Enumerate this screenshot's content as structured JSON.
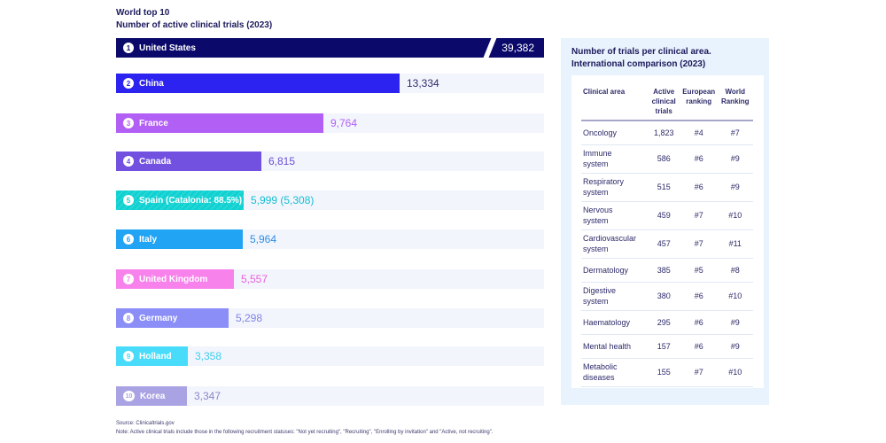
{
  "title": {
    "line1": "World top 10",
    "line2": "Number of active clinical trials (2023)"
  },
  "chart_data": {
    "type": "bar",
    "orientation": "horizontal",
    "title": "World top 10 — Number of active clinical trials (2023)",
    "xlabel": "",
    "ylabel": "",
    "axis_break_on_first_bar": true,
    "xlim": [
      0,
      15000
    ],
    "categories": [
      "United States",
      "China",
      "France",
      "Canada",
      "Spain (Catalonia: 88.5%)",
      "Italy",
      "United Kingdom",
      "Germany",
      "Holland",
      "Korea"
    ],
    "values": [
      39382,
      13334,
      9764,
      6815,
      5999,
      5964,
      5557,
      5298,
      3358,
      3347
    ],
    "bars": [
      {
        "rank": "1",
        "label": "United States",
        "value": 39382,
        "value_label": "39,382",
        "color": "#0b0a6b",
        "text_color": "#ffffff",
        "broken": true
      },
      {
        "rank": "2",
        "label": "China",
        "value": 13334,
        "value_label": "13,334",
        "color": "#2d23f0",
        "text_color": "#2d2b6a"
      },
      {
        "rank": "3",
        "label": "France",
        "value": 9764,
        "value_label": "9,764",
        "color": "#b25ff5",
        "text_color": "#b25ff5"
      },
      {
        "rank": "4",
        "label": "Canada",
        "value": 6815,
        "value_label": "6,815",
        "color": "#7351e0",
        "text_color": "#6a4fd6"
      },
      {
        "rank": "5",
        "label": "Spain (Catalonia: 88.5%)",
        "value": 5999,
        "value_label": "5,999 (5,308)",
        "secondary_value": 5308,
        "color": "#0fd1d1",
        "text_color": "#12bfcf",
        "striped": true
      },
      {
        "rank": "6",
        "label": "Italy",
        "value": 5964,
        "value_label": "5,964",
        "color": "#22a4f4",
        "text_color": "#2a8ee8"
      },
      {
        "rank": "7",
        "label": "United Kingdom",
        "value": 5557,
        "value_label": "5,557",
        "color": "#f882ec",
        "text_color": "#e860dc"
      },
      {
        "rank": "8",
        "label": "Germany",
        "value": 5298,
        "value_label": "5,298",
        "color": "#8a8ef6",
        "text_color": "#7f84e8"
      },
      {
        "rank": "9",
        "label": "Holland",
        "value": 3358,
        "value_label": "3,358",
        "color": "#48dcfa",
        "text_color": "#3ccdf0"
      },
      {
        "rank": "10",
        "label": "Korea",
        "value": 3347,
        "value_label": "3,347",
        "color": "#a9a3e3",
        "text_color": "#8a85c8"
      }
    ]
  },
  "panel": {
    "title_line1": "Number of trials per clinical area.",
    "title_line2": "International comparison (2023)",
    "headers": [
      [
        "Clinical area"
      ],
      [
        "Active",
        "clinical",
        "trials"
      ],
      [
        "European",
        "ranking"
      ],
      [
        "World",
        "Ranking"
      ]
    ],
    "rows": [
      {
        "area": [
          "Oncology"
        ],
        "trials": "1,823",
        "eu": "#4",
        "world": "#7"
      },
      {
        "area": [
          "Immune",
          "system"
        ],
        "trials": "586",
        "eu": "#6",
        "world": "#9"
      },
      {
        "area": [
          "Respiratory",
          "system"
        ],
        "trials": "515",
        "eu": "#6",
        "world": "#9"
      },
      {
        "area": [
          "Nervous",
          "system"
        ],
        "trials": "459",
        "eu": "#7",
        "world": "#10"
      },
      {
        "area": [
          "Cardiovascular",
          "system"
        ],
        "trials": "457",
        "eu": "#7",
        "world": "#11"
      },
      {
        "area": [
          "Dermatology"
        ],
        "trials": "385",
        "eu": "#5",
        "world": "#8"
      },
      {
        "area": [
          "Digestive",
          "system"
        ],
        "trials": "380",
        "eu": "#6",
        "world": "#10"
      },
      {
        "area": [
          "Haematology"
        ],
        "trials": "295",
        "eu": "#6",
        "world": "#9"
      },
      {
        "area": [
          "Mental health"
        ],
        "trials": "157",
        "eu": "#6",
        "world": "#9"
      },
      {
        "area": [
          "Metabolic",
          "diseases"
        ],
        "trials": "155",
        "eu": "#7",
        "world": "#10"
      }
    ]
  },
  "footer": {
    "source": "Source: Clinicaltrials.gov",
    "note": "Note: Active clinical trials include those in the following recruitment statuses: \"Not yet recruiting\", \"Recruiting\", \"Enrolling by invitation\" and \"Active, not recruiting\"."
  }
}
